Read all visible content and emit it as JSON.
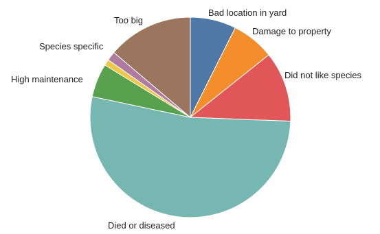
{
  "chart_data": {
    "type": "pie",
    "categories": [
      "Bad location in yard",
      "Damage to property",
      "Did not like species",
      "Died or diseased",
      "High maintenance",
      "Species specific",
      "Too big"
    ],
    "values": [
      7.5,
      7.0,
      11.5,
      53.5,
      5.5,
      1.0,
      14.0
    ],
    "other_slices": [
      {
        "value": 1.5,
        "color": "#B07AA1"
      }
    ],
    "colors": [
      "#4E79A7",
      "#F28E2B",
      "#E15759",
      "#76B7B2",
      "#59A14F",
      "#EDC948",
      "#9C755F"
    ],
    "title": "",
    "legend": "none"
  }
}
